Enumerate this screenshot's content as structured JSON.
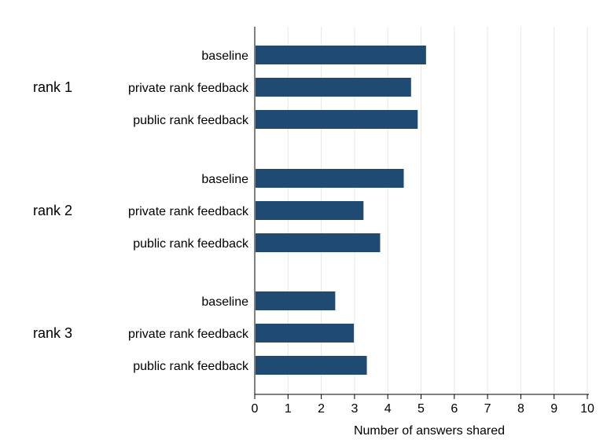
{
  "chart_data": {
    "type": "bar",
    "orientation": "horizontal",
    "title": "",
    "xlabel": "Number of answers shared",
    "xlim": [
      0,
      10
    ],
    "xticks": [
      "0",
      "1",
      "2",
      "3",
      "4",
      "5",
      "6",
      "7",
      "8",
      "9",
      "10"
    ],
    "grid": "vertical",
    "bar_color": "#1f4a72",
    "groups": [
      {
        "label": "rank 1",
        "bars": [
          {
            "label": "baseline",
            "value": 5.15
          },
          {
            "label": "private rank feedback",
            "value": 4.7
          },
          {
            "label": "public rank feedback",
            "value": 4.9
          }
        ]
      },
      {
        "label": "rank 2",
        "bars": [
          {
            "label": "baseline",
            "value": 4.48
          },
          {
            "label": "private rank feedback",
            "value": 3.27
          },
          {
            "label": "public rank feedback",
            "value": 3.77
          }
        ]
      },
      {
        "label": "rank 3",
        "bars": [
          {
            "label": "baseline",
            "value": 2.42
          },
          {
            "label": "private rank feedback",
            "value": 2.98
          },
          {
            "label": "public rank feedback",
            "value": 3.37
          }
        ]
      }
    ]
  }
}
